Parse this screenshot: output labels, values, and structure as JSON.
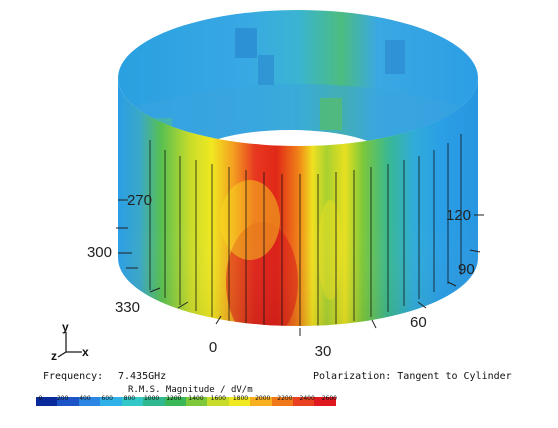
{
  "plot": {
    "angle_labels": [
      {
        "text": "270"
      },
      {
        "text": "300"
      },
      {
        "text": "330"
      },
      {
        "text": "0"
      },
      {
        "text": "30"
      },
      {
        "text": "60"
      },
      {
        "text": "90"
      },
      {
        "text": "120"
      }
    ],
    "axes": {
      "y": "y",
      "z": "z",
      "x": "x"
    }
  },
  "footer": {
    "frequency_label": "Frequency:",
    "frequency_value": "7.435GHz",
    "polarization": "Polarization: Tangent to Cylinder",
    "legend_title": "R.M.S. Magnitude / dV/m",
    "ticks": [
      "0",
      "200",
      "400",
      "600",
      "800",
      "1000",
      "1200",
      "1400",
      "1600",
      "1800",
      "2000",
      "2200",
      "2400",
      "2600"
    ]
  },
  "colors": {
    "colorbar": [
      "#0a2a9c",
      "#1c54c8",
      "#2a86e2",
      "#2fb0e6",
      "#33c8c8",
      "#30b890",
      "#3ab858",
      "#7cc83a",
      "#c8dc2a",
      "#f0e820",
      "#f8b020",
      "#f07818",
      "#e84020",
      "#e01820"
    ],
    "cylinder_outer_hot": "#e01820",
    "cylinder_outer_base": "#2a9ee6",
    "stroke": "#111111"
  }
}
